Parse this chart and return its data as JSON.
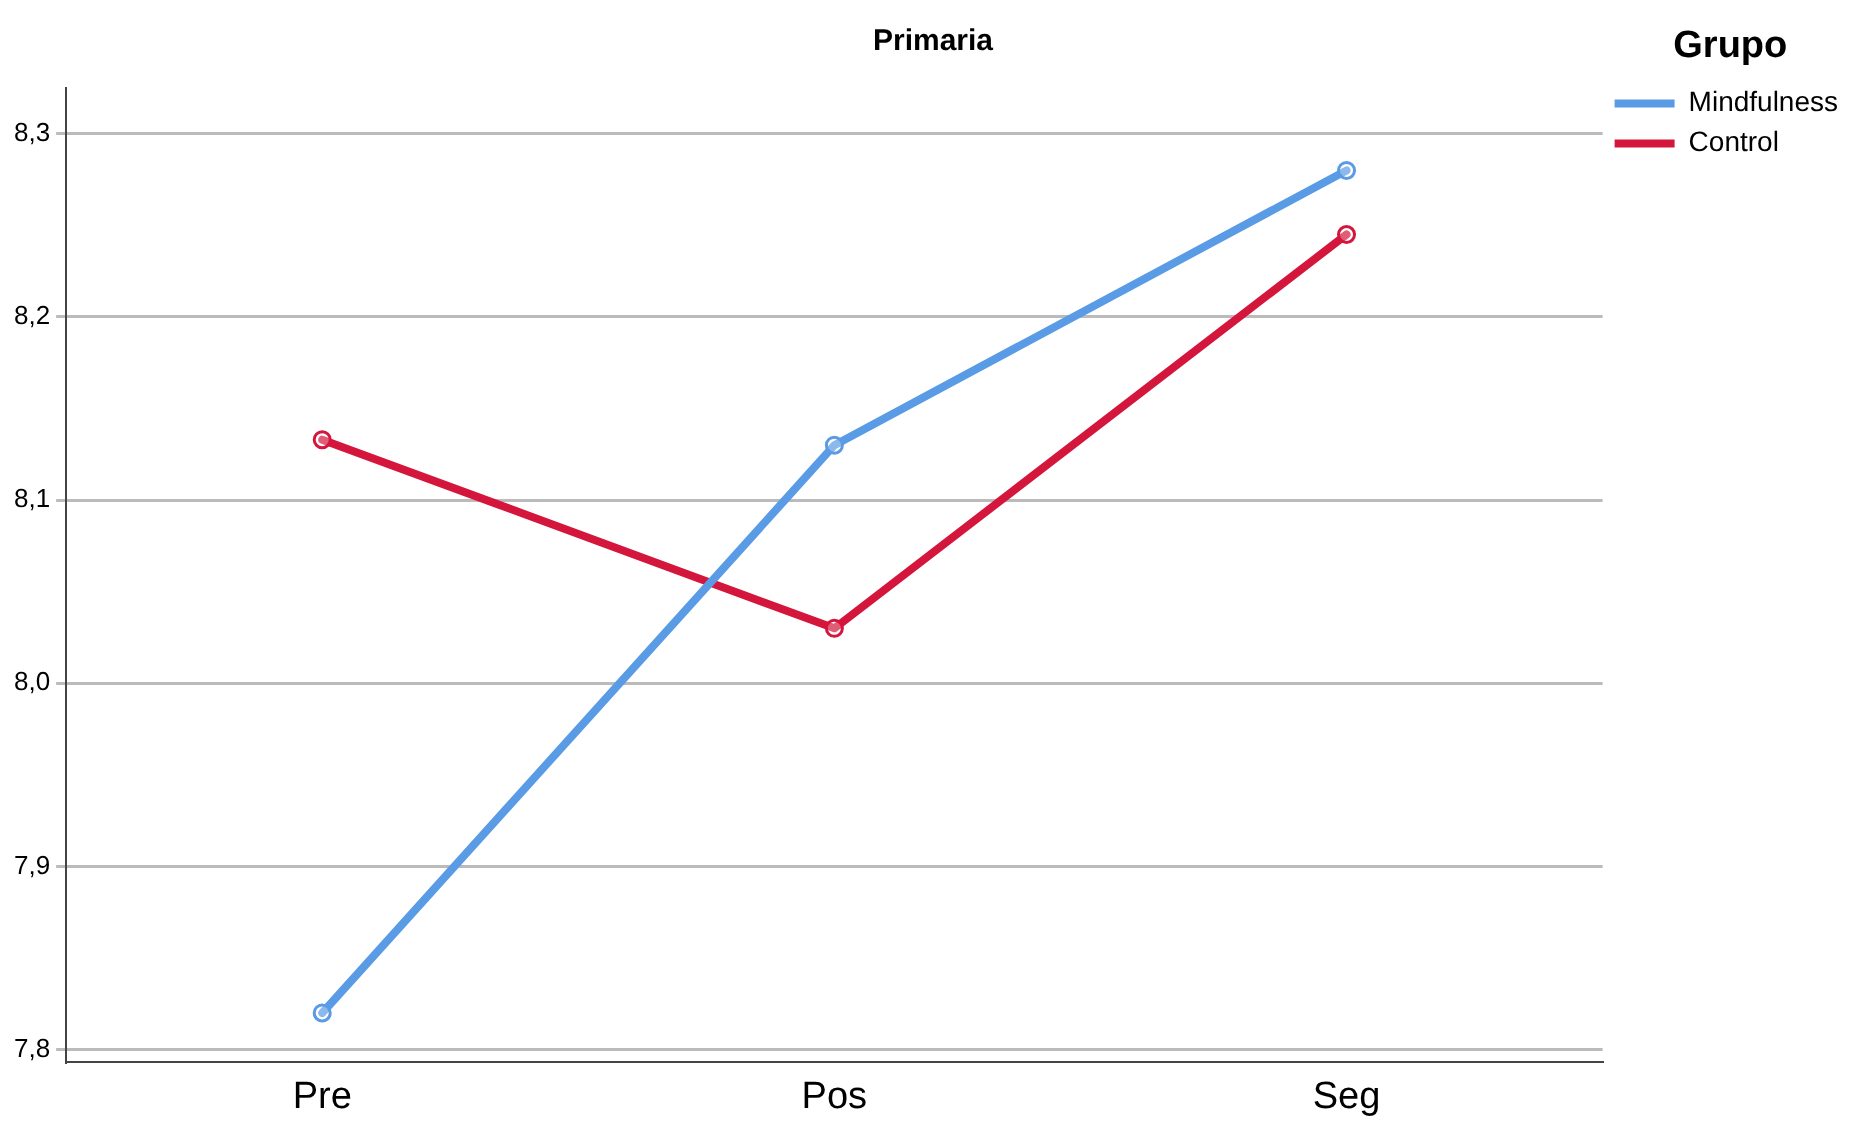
{
  "chart_data": {
    "type": "line",
    "title": "Primaria",
    "legend_title": "Grupo",
    "categories": [
      "Pre",
      "Pos",
      "Seg"
    ],
    "series": [
      {
        "name": "Mindfulness",
        "color": "#5a9be6",
        "values": [
          7.82,
          8.13,
          8.28
        ]
      },
      {
        "name": "Control",
        "color": "#d4163c",
        "values": [
          8.133,
          8.03,
          8.245
        ]
      }
    ],
    "ylim": [
      7.793,
      8.325
    ],
    "yticks": [
      {
        "value": 7.8,
        "label": "7,8"
      },
      {
        "value": 7.9,
        "label": "7,9"
      },
      {
        "value": 8.0,
        "label": "8,0"
      },
      {
        "value": 8.1,
        "label": "8,1"
      },
      {
        "value": 8.2,
        "label": "8,2"
      },
      {
        "value": 8.3,
        "label": "8,3"
      }
    ],
    "grid": "y",
    "legend": "top right",
    "marker": "circle",
    "line_style": "solid"
  }
}
